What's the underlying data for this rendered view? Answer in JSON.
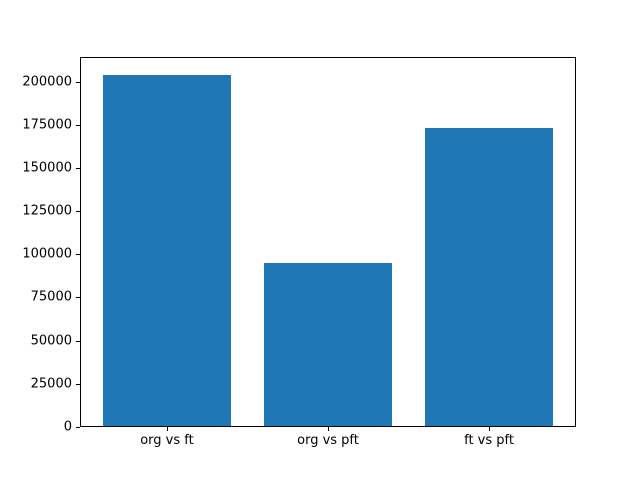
{
  "chart_data": {
    "type": "bar",
    "title": "",
    "xlabel": "",
    "ylabel": "",
    "categories": [
      "org vs ft",
      "org vs pft",
      "ft vs pft"
    ],
    "values": [
      204000,
      95000,
      173000
    ],
    "yticks": [
      0,
      25000,
      50000,
      75000,
      100000,
      125000,
      150000,
      175000,
      200000
    ],
    "ylim": [
      0,
      214200
    ],
    "xlim": [
      -0.54,
      2.54
    ],
    "bar_width": 0.8,
    "bar_color": "#1f77b4",
    "background_color": "#ffffff",
    "spine_color": "#000000",
    "tick_label_color": "#000000",
    "grid": false,
    "legend": null
  }
}
